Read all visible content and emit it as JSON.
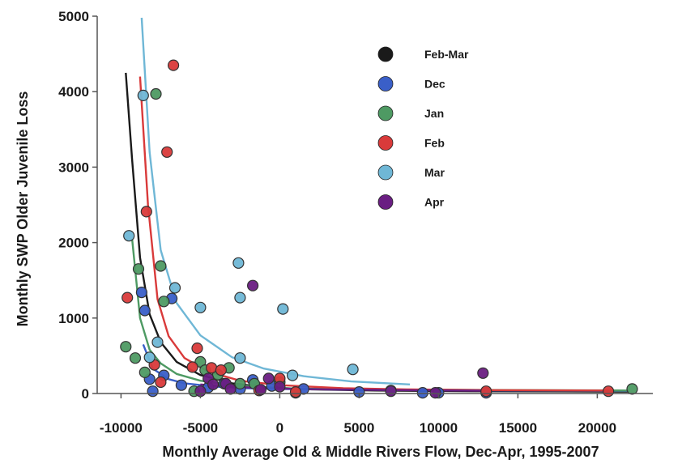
{
  "chart_data": {
    "type": "scatter",
    "title": "",
    "xlabel": "Monthly Average Old & Middle Rivers Flow, Dec-Apr, 1995-2007",
    "ylabel": "Monthly SWP Older Juvenile Loss",
    "xlim": [
      -11500,
      23500
    ],
    "ylim": [
      0,
      5000
    ],
    "x_ticks": [
      -10000,
      -5000,
      0,
      5000,
      10000,
      15000,
      20000
    ],
    "y_ticks": [
      0,
      1000,
      2000,
      3000,
      4000,
      5000
    ],
    "x_tick_labels": [
      "-10000",
      "-5000",
      "0",
      "5000",
      "10000",
      "15000",
      "20000"
    ],
    "y_tick_labels": [
      "0",
      "1000",
      "2000",
      "3000",
      "4000",
      "5000"
    ],
    "grid": false,
    "legend_position": "top-right",
    "series": [
      {
        "name": "Feb-Mar",
        "color": "#1a1a1a",
        "points": [],
        "curve": {
          "x": [
            -9700,
            -9300,
            -8800,
            -8200,
            -7500,
            -6500,
            -5000,
            -3000,
            -1000,
            2000,
            6000,
            12000,
            18000,
            22000
          ],
          "y": [
            4250,
            3100,
            1800,
            1050,
            680,
            420,
            245,
            135,
            85,
            55,
            40,
            30,
            28,
            25
          ]
        }
      },
      {
        "name": "Dec",
        "color": "#3a5fc8",
        "points": [
          [
            -8700,
            1340
          ],
          [
            -8500,
            1100
          ],
          [
            -8200,
            190
          ],
          [
            -8000,
            30
          ],
          [
            -7300,
            240
          ],
          [
            -6800,
            1260
          ],
          [
            -6200,
            110
          ],
          [
            -4500,
            80
          ],
          [
            -3500,
            130
          ],
          [
            -2500,
            60
          ],
          [
            -1700,
            180
          ],
          [
            -500,
            100
          ],
          [
            1500,
            60
          ],
          [
            5000,
            20
          ],
          [
            9000,
            10
          ],
          [
            10000,
            10
          ],
          [
            13000,
            10
          ]
        ],
        "curve": {
          "x": [
            -8600,
            -8000,
            -7000,
            -6000,
            -4000,
            -2000,
            0,
            5000,
            10000,
            15000,
            22000
          ],
          "y": [
            650,
            330,
            190,
            135,
            90,
            70,
            60,
            50,
            45,
            40,
            35
          ]
        }
      },
      {
        "name": "Jan",
        "color": "#4e9a63",
        "points": [
          [
            -9700,
            620
          ],
          [
            -9100,
            470
          ],
          [
            -8900,
            1650
          ],
          [
            -8500,
            280
          ],
          [
            -7800,
            3970
          ],
          [
            -7500,
            1690
          ],
          [
            -7300,
            1220
          ],
          [
            -5400,
            30
          ],
          [
            -5000,
            420
          ],
          [
            -4700,
            310
          ],
          [
            -3900,
            250
          ],
          [
            -3200,
            340
          ],
          [
            -2500,
            130
          ],
          [
            -1600,
            130
          ],
          [
            0,
            150
          ],
          [
            1000,
            10
          ],
          [
            22200,
            60
          ]
        ],
        "curve": {
          "x": [
            -9300,
            -8800,
            -8200,
            -7500,
            -6500,
            -5000,
            -3000,
            0,
            5000,
            10000,
            15000,
            22000
          ],
          "y": [
            2050,
            1000,
            580,
            400,
            260,
            170,
            110,
            70,
            55,
            50,
            45,
            40
          ]
        }
      },
      {
        "name": "Feb",
        "color": "#d93a3a",
        "points": [
          [
            -9600,
            1270
          ],
          [
            -8400,
            2410
          ],
          [
            -7900,
            380
          ],
          [
            -7500,
            150
          ],
          [
            -7100,
            3200
          ],
          [
            -6700,
            4350
          ],
          [
            -5500,
            350
          ],
          [
            -5200,
            600
          ],
          [
            -4300,
            340
          ],
          [
            -3700,
            310
          ],
          [
            -1300,
            40
          ],
          [
            0,
            200
          ],
          [
            1000,
            20
          ],
          [
            13000,
            30
          ],
          [
            20700,
            30
          ]
        ],
        "curve": {
          "x": [
            -8800,
            -8300,
            -7700,
            -7000,
            -6000,
            -4500,
            -2500,
            0,
            4000,
            8000,
            13000,
            20700
          ],
          "y": [
            4200,
            2500,
            1250,
            760,
            470,
            290,
            170,
            110,
            70,
            55,
            45,
            40
          ]
        }
      },
      {
        "name": "Mar",
        "color": "#6fb7d6",
        "points": [
          [
            -9500,
            2090
          ],
          [
            -8600,
            3950
          ],
          [
            -8200,
            480
          ],
          [
            -7700,
            680
          ],
          [
            -6600,
            1400
          ],
          [
            -5000,
            1140
          ],
          [
            -2600,
            1730
          ],
          [
            -2500,
            1270
          ],
          [
            -2500,
            470
          ],
          [
            200,
            1120
          ],
          [
            800,
            240
          ],
          [
            4600,
            320
          ],
          [
            7000,
            40
          ]
        ],
        "curve": {
          "x": [
            -8700,
            -8200,
            -7500,
            -6500,
            -5000,
            -3000,
            -1000,
            1500,
            4500,
            8200
          ],
          "y": [
            4980,
            3200,
            1900,
            1200,
            770,
            480,
            330,
            230,
            160,
            120
          ]
        }
      },
      {
        "name": "Apr",
        "color": "#6a1e82",
        "points": [
          [
            -5000,
            30
          ],
          [
            -4500,
            200
          ],
          [
            -4200,
            120
          ],
          [
            -3400,
            130
          ],
          [
            -3100,
            60
          ],
          [
            -1700,
            1430
          ],
          [
            -1200,
            50
          ],
          [
            -700,
            200
          ],
          [
            0,
            90
          ],
          [
            7000,
            30
          ],
          [
            9800,
            10
          ],
          [
            12800,
            270
          ]
        ],
        "curve": {
          "x": [
            -5000,
            -3500,
            -2000,
            0,
            3000,
            6000,
            9000,
            12800
          ],
          "y": [
            120,
            95,
            80,
            65,
            55,
            48,
            42,
            38
          ]
        }
      }
    ]
  }
}
